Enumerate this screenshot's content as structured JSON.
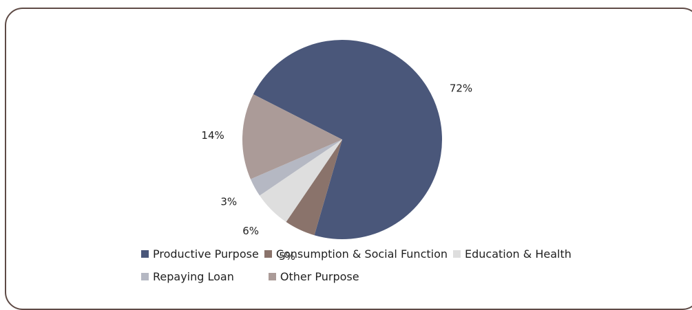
{
  "chart_data": {
    "type": "pie",
    "title": "",
    "slices": [
      {
        "name": "Productive Purpose",
        "label": "72%",
        "value": 72,
        "color": "#4a577a"
      },
      {
        "name": "Consumption & Social Function",
        "label": "5%",
        "value": 5,
        "color": "#8a736b"
      },
      {
        "name": "Education & Health",
        "label": "6%",
        "value": 6,
        "color": "#dedede"
      },
      {
        "name": "Repaying Loan",
        "label": "3%",
        "value": 3,
        "color": "#b5b8c3"
      },
      {
        "name": "Other Purpose",
        "label": "14%",
        "value": 14,
        "color": "#ab9b98"
      }
    ],
    "legend": {
      "placement": "bottom",
      "rows": [
        [
          "Productive Purpose",
          "Consumption & Social Function",
          "Education & Health"
        ],
        [
          "Repaying Loan",
          "Other Purpose"
        ]
      ]
    }
  }
}
